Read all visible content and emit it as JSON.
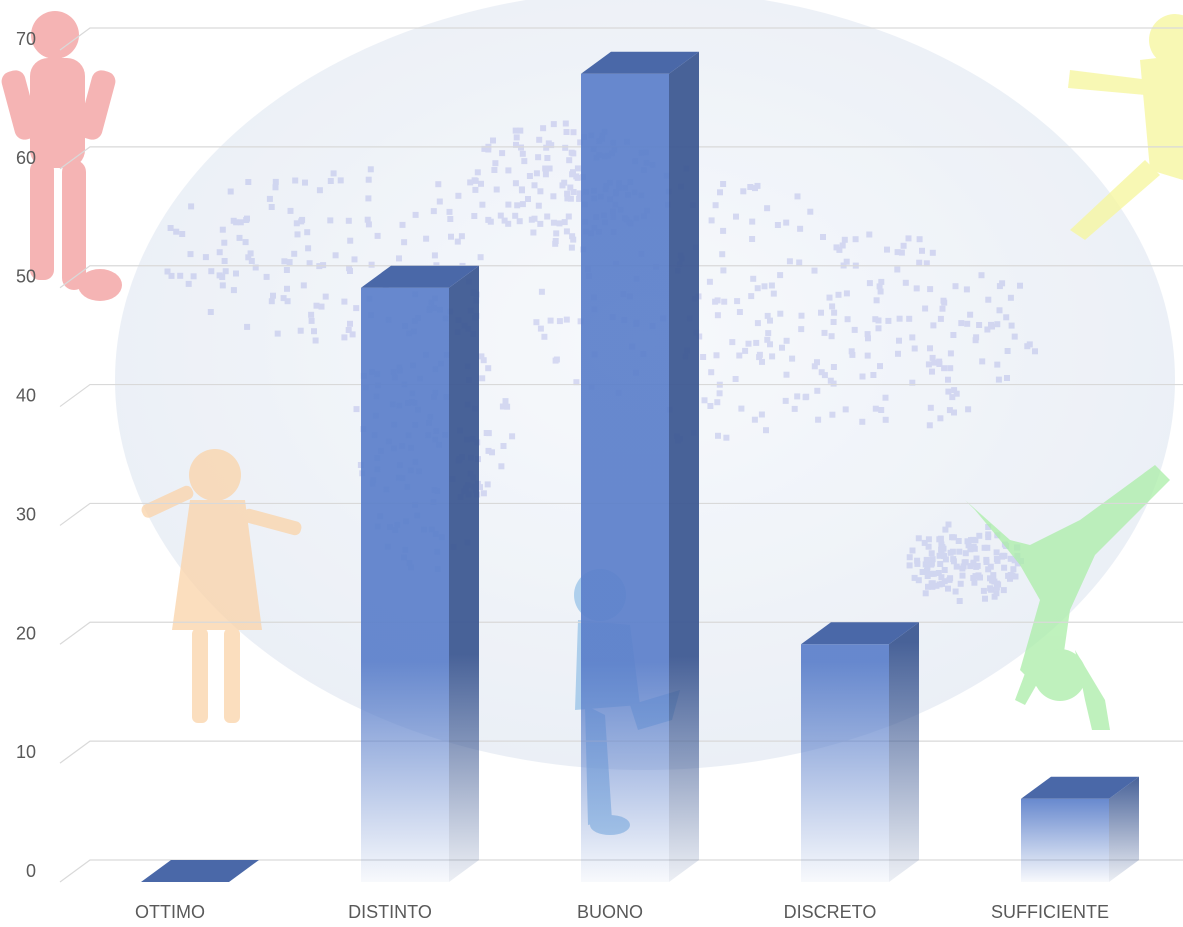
{
  "chart_data": {
    "type": "bar",
    "title": "",
    "xlabel": "",
    "ylabel": "",
    "categories": [
      "OTTIMO",
      "DISTINTO",
      "BUONO",
      "DISCRETO",
      "SUFFICIENTE"
    ],
    "series": [
      {
        "values": [
          0,
          50,
          68,
          20,
          7
        ]
      }
    ],
    "ylim": [
      0,
      70
    ],
    "yticks": [
      0,
      10,
      20,
      30,
      40,
      50,
      60,
      70
    ],
    "grid": true,
    "legend": "none",
    "bar_style": "3d-gradient",
    "colors": {
      "bar_front": "#5b7fca",
      "bar_top": "#4a68a8",
      "bar_side": "#3f5a93",
      "grid": "#d9d9d9",
      "tick_text": "#595959",
      "globe": "#e8eef6",
      "map_dots": "#7b83d9",
      "figure_red": "#f08a8a",
      "figure_orange": "#f9c58c",
      "figure_blue": "#5aa0dc",
      "figure_green": "#8ee88a",
      "figure_yellow": "#f4f47a"
    }
  }
}
